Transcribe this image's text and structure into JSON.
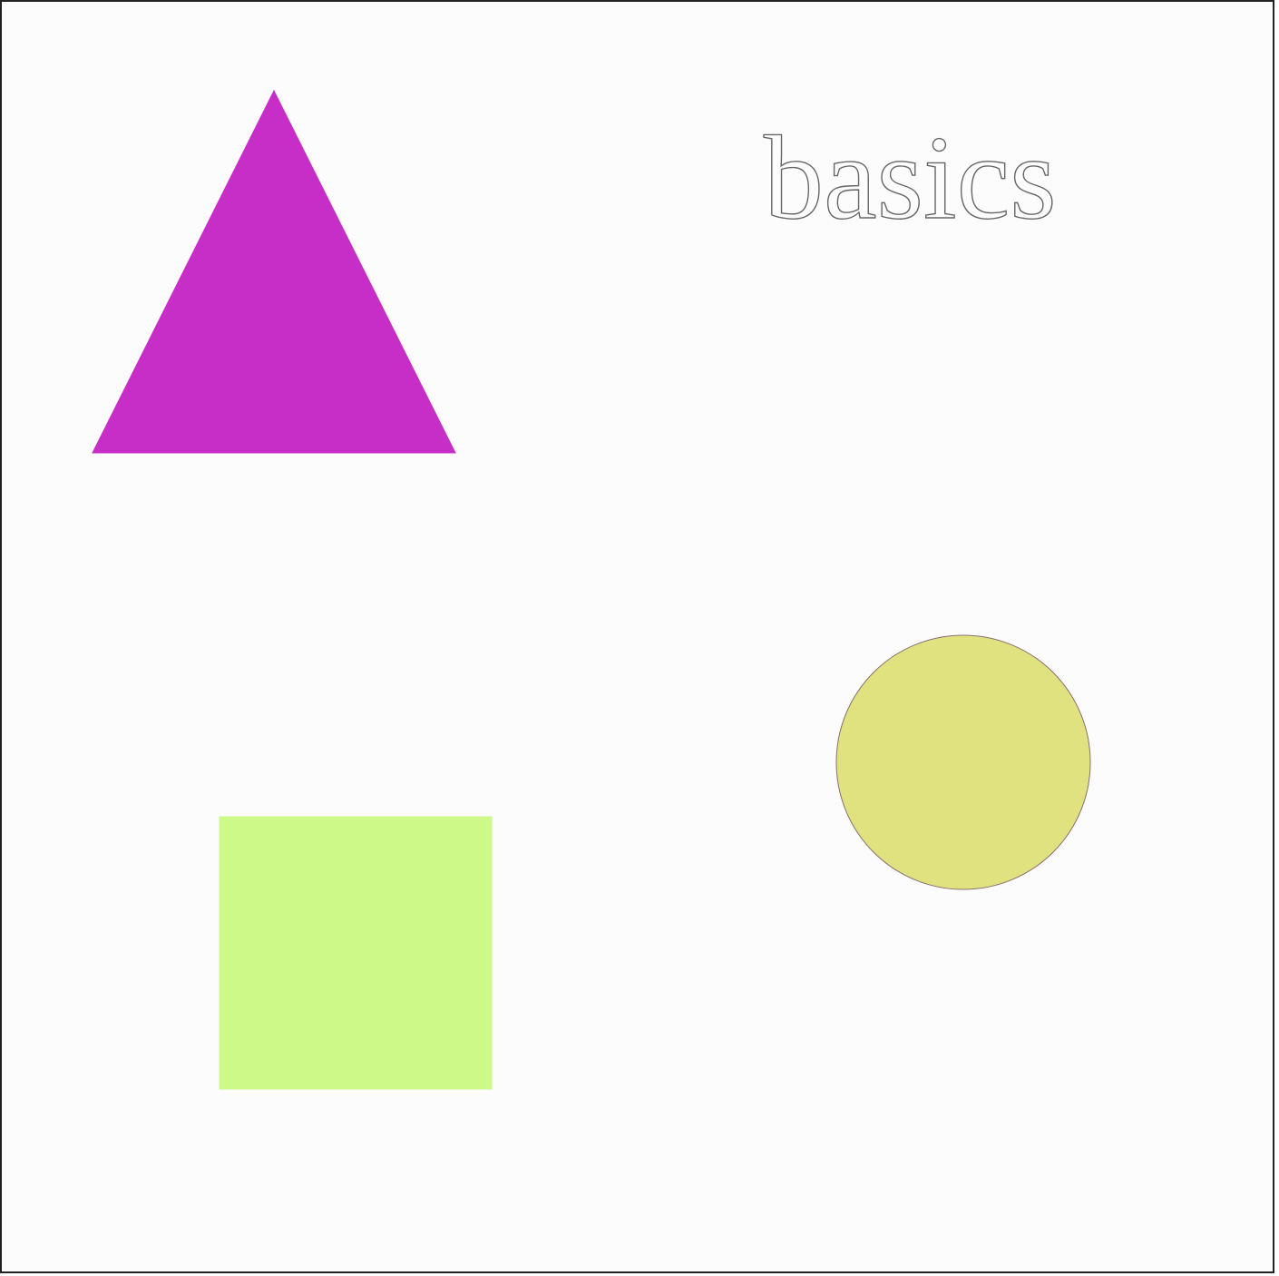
{
  "canvas": {
    "title": "basics",
    "background": "#fcfcfc",
    "frame_color": "#222222"
  },
  "shapes": {
    "triangle": {
      "fill": "#c72ec7",
      "stroke": "#c72ec7"
    },
    "circle": {
      "fill": "#dfe27f",
      "stroke": "#8a6f73"
    },
    "square": {
      "fill": "#ccf987",
      "stroke": "#ccf987"
    }
  },
  "label": {
    "text": "basics",
    "stroke": "#666666"
  }
}
